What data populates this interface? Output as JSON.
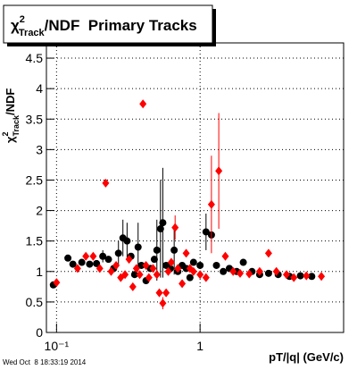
{
  "chart_data": {
    "type": "scatter",
    "title": {
      "symbol": "χ",
      "superscript": "2",
      "subscript": "Track",
      "text": "/NDF  Primary Tracks"
    },
    "ylabel": {
      "symbol": "χ",
      "superscript": "2",
      "subscript": "Track",
      "text": "/NDF"
    },
    "xlabel": "pT/|q| (GeV/c)",
    "footer": "Wed Oct  8 18:33:19 2014",
    "xlog": true,
    "grid": true,
    "xlim": [
      0.085,
      10
    ],
    "ylim": [
      0,
      4.75
    ],
    "xticks": [
      {
        "value": 0.1,
        "label": "10⁻¹"
      },
      1
    ],
    "yticks": [
      0,
      0.5,
      1,
      1.5,
      2,
      2.5,
      3,
      3.5,
      4,
      4.5
    ],
    "series": [
      {
        "color": "#000000",
        "marker": "circle",
        "x": [
          0.095,
          0.12,
          0.13,
          0.15,
          0.17,
          0.19,
          0.21,
          0.23,
          0.25,
          0.27,
          0.29,
          0.31,
          0.33,
          0.35,
          0.37,
          0.39,
          0.42,
          0.45,
          0.48,
          0.5,
          0.53,
          0.55,
          0.58,
          0.62,
          0.66,
          0.7,
          0.75,
          0.8,
          0.85,
          0.9,
          1.0,
          1.1,
          1.2,
          1.3,
          1.45,
          1.6,
          1.8,
          2.0,
          2.3,
          2.6,
          3.0,
          3.5,
          4.2,
          5.0,
          6.0
        ],
        "values": [
          0.78,
          1.22,
          1.12,
          1.15,
          1.12,
          1.13,
          1.25,
          1.2,
          1.05,
          1.3,
          1.55,
          1.5,
          1.25,
          0.95,
          1.4,
          1.1,
          0.85,
          1.05,
          1.2,
          1.35,
          1.7,
          1.8,
          1.1,
          1.05,
          1.35,
          1.0,
          1.1,
          1.05,
          0.9,
          1.15,
          1.1,
          1.65,
          1.6,
          1.1,
          1.0,
          1.05,
          1.0,
          1.15,
          1.0,
          0.95,
          0.97,
          0.95,
          0.92,
          0.93,
          0.92
        ],
        "errors": [
          0,
          0.05,
          0,
          0,
          0,
          0,
          0.1,
          0,
          0,
          0.2,
          0.3,
          0.3,
          0,
          0,
          0.4,
          0,
          0,
          0,
          0,
          0.5,
          0.8,
          0.9,
          0,
          0,
          0.4,
          0,
          0,
          0,
          0,
          0,
          0,
          0.3,
          0,
          0,
          0,
          0,
          0,
          0,
          0,
          0,
          0,
          0,
          0,
          0,
          0
        ]
      },
      {
        "color": "#ff0000",
        "marker": "diamond",
        "x": [
          0.1,
          0.14,
          0.16,
          0.18,
          0.2,
          0.22,
          0.24,
          0.26,
          0.28,
          0.3,
          0.32,
          0.34,
          0.36,
          0.38,
          0.4,
          0.42,
          0.44,
          0.47,
          0.5,
          0.52,
          0.55,
          0.58,
          0.6,
          0.63,
          0.67,
          0.7,
          0.75,
          0.8,
          0.85,
          0.9,
          1.0,
          1.1,
          1.2,
          1.35,
          1.5,
          1.7,
          1.9,
          2.2,
          2.6,
          3.0,
          3.4,
          4.0,
          4.5,
          5.5,
          7.0
        ],
        "values": [
          0.82,
          1.05,
          1.25,
          1.25,
          1.05,
          2.45,
          1.0,
          1.1,
          0.9,
          0.95,
          1.2,
          0.75,
          1.05,
          0.95,
          3.75,
          1.1,
          0.9,
          1.05,
          0.95,
          0.65,
          0.48,
          0.65,
          1.0,
          1.15,
          1.72,
          1.05,
          0.8,
          1.3,
          1.05,
          1.0,
          0.95,
          0.9,
          2.1,
          2.65,
          1.25,
          1.0,
          0.97,
          0.96,
          1.0,
          1.3,
          1.0,
          0.95,
          0.9,
          0.93,
          0.92
        ],
        "errors": [
          0,
          0,
          0,
          0,
          0,
          0,
          0,
          0,
          0,
          0,
          0,
          0,
          0,
          0,
          0,
          0,
          0,
          0,
          0,
          0,
          0.1,
          0,
          0,
          0,
          0.2,
          0,
          0,
          0,
          0,
          0,
          0,
          0,
          0.8,
          0.95,
          0,
          0,
          0,
          0,
          0,
          0,
          0,
          0,
          0,
          0,
          0
        ]
      }
    ]
  }
}
